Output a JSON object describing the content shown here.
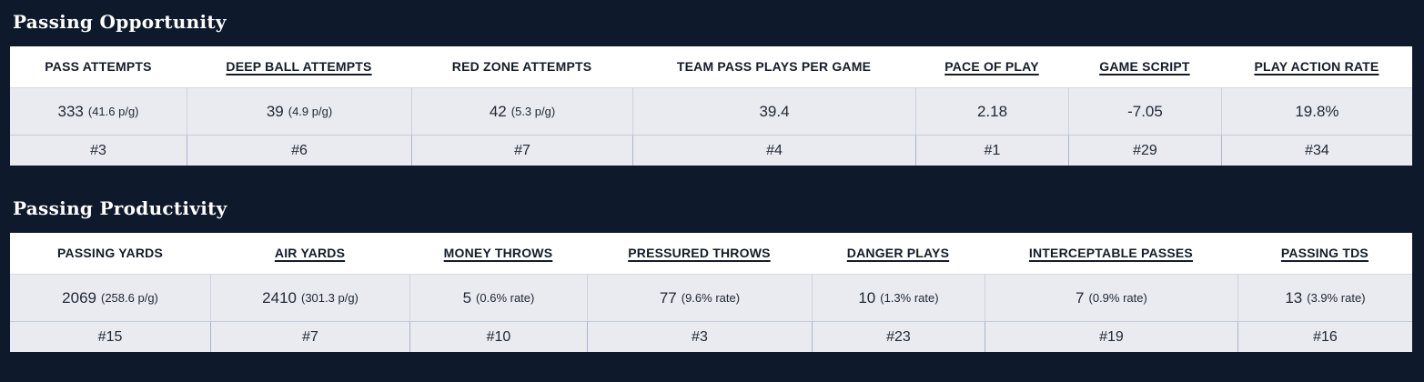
{
  "theme": {
    "page_bg": "#0e1a2b",
    "header_bg": "#ffffff",
    "cell_bg": "#e9ebf1",
    "border_color": "#b8c2d2",
    "title_color": "#ffffff",
    "text_color": "#222935"
  },
  "sections": [
    {
      "title": "Passing Opportunity",
      "columns": [
        {
          "label": "PASS ATTEMPTS",
          "underlined": false,
          "value": "333",
          "sub": "(41.6 p/g)",
          "rank": "#3"
        },
        {
          "label": "DEEP BALL ATTEMPTS",
          "underlined": true,
          "value": "39",
          "sub": "(4.9 p/g)",
          "rank": "#6"
        },
        {
          "label": "RED ZONE ATTEMPTS",
          "underlined": false,
          "value": "42",
          "sub": "(5.3 p/g)",
          "rank": "#7"
        },
        {
          "label": "TEAM PASS PLAYS PER GAME",
          "underlined": false,
          "value": "39.4",
          "sub": "",
          "rank": "#4"
        },
        {
          "label": "PACE OF PLAY",
          "underlined": true,
          "value": "2.18",
          "sub": "",
          "rank": "#1"
        },
        {
          "label": "GAME SCRIPT",
          "underlined": true,
          "value": "-7.05",
          "sub": "",
          "rank": "#29"
        },
        {
          "label": "PLAY ACTION RATE",
          "underlined": true,
          "value": "19.8%",
          "sub": "",
          "rank": "#34"
        }
      ]
    },
    {
      "title": "Passing Productivity",
      "columns": [
        {
          "label": "PASSING YARDS",
          "underlined": false,
          "value": "2069",
          "sub": "(258.6 p/g)",
          "rank": "#15"
        },
        {
          "label": "AIR YARDS",
          "underlined": true,
          "value": "2410",
          "sub": "(301.3 p/g)",
          "rank": "#7"
        },
        {
          "label": "MONEY THROWS",
          "underlined": true,
          "value": "5",
          "sub": "(0.6% rate)",
          "rank": "#10"
        },
        {
          "label": "PRESSURED THROWS",
          "underlined": true,
          "value": "77",
          "sub": "(9.6% rate)",
          "rank": "#3"
        },
        {
          "label": "DANGER PLAYS",
          "underlined": true,
          "value": "10",
          "sub": "(1.3% rate)",
          "rank": "#23"
        },
        {
          "label": "INTERCEPTABLE PASSES",
          "underlined": true,
          "value": "7",
          "sub": "(0.9% rate)",
          "rank": "#19"
        },
        {
          "label": "PASSING TDS",
          "underlined": true,
          "value": "13",
          "sub": "(3.9% rate)",
          "rank": "#16"
        }
      ]
    }
  ]
}
